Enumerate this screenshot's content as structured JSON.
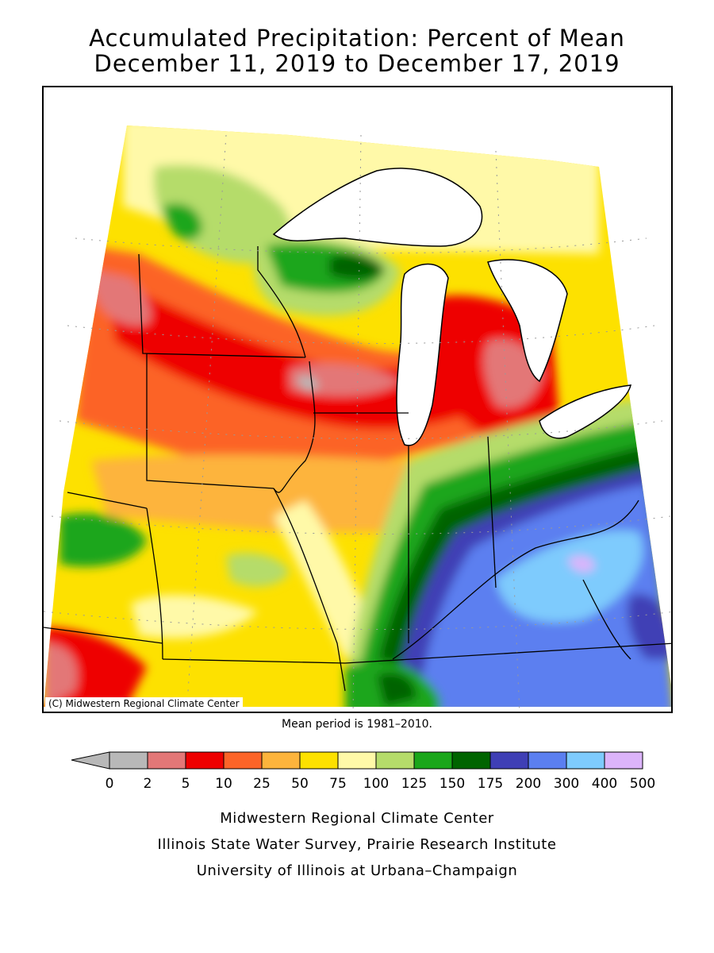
{
  "title": {
    "line1": "Accumulated Precipitation: Percent of Mean",
    "line2": "December 11, 2019 to December 17, 2019"
  },
  "map": {
    "credit": "(C) Midwestern Regional Climate Center",
    "mean_period_note": "Mean period is 1981–2010."
  },
  "legend": {
    "tick_labels": [
      "0",
      "2",
      "5",
      "10",
      "25",
      "50",
      "75",
      "100",
      "125",
      "150",
      "175",
      "200",
      "300",
      "400",
      "500"
    ],
    "below_min_color": "#b8b8b8",
    "bin_colors": [
      "#b8b8b8",
      "#e37777",
      "#ee0000",
      "#fc6428",
      "#fdb43c",
      "#fde100",
      "#fff9a8",
      "#b5dc6a",
      "#1aa61a",
      "#006400",
      "#3f3fb5",
      "#5b7ff0",
      "#7ecbfd",
      "#dcb4fa"
    ]
  },
  "footer": {
    "line1": "Midwestern Regional Climate Center",
    "line2": "Illinois State Water Survey, Prairie Research Institute",
    "line3": "University of Illinois at Urbana–Champaign"
  }
}
